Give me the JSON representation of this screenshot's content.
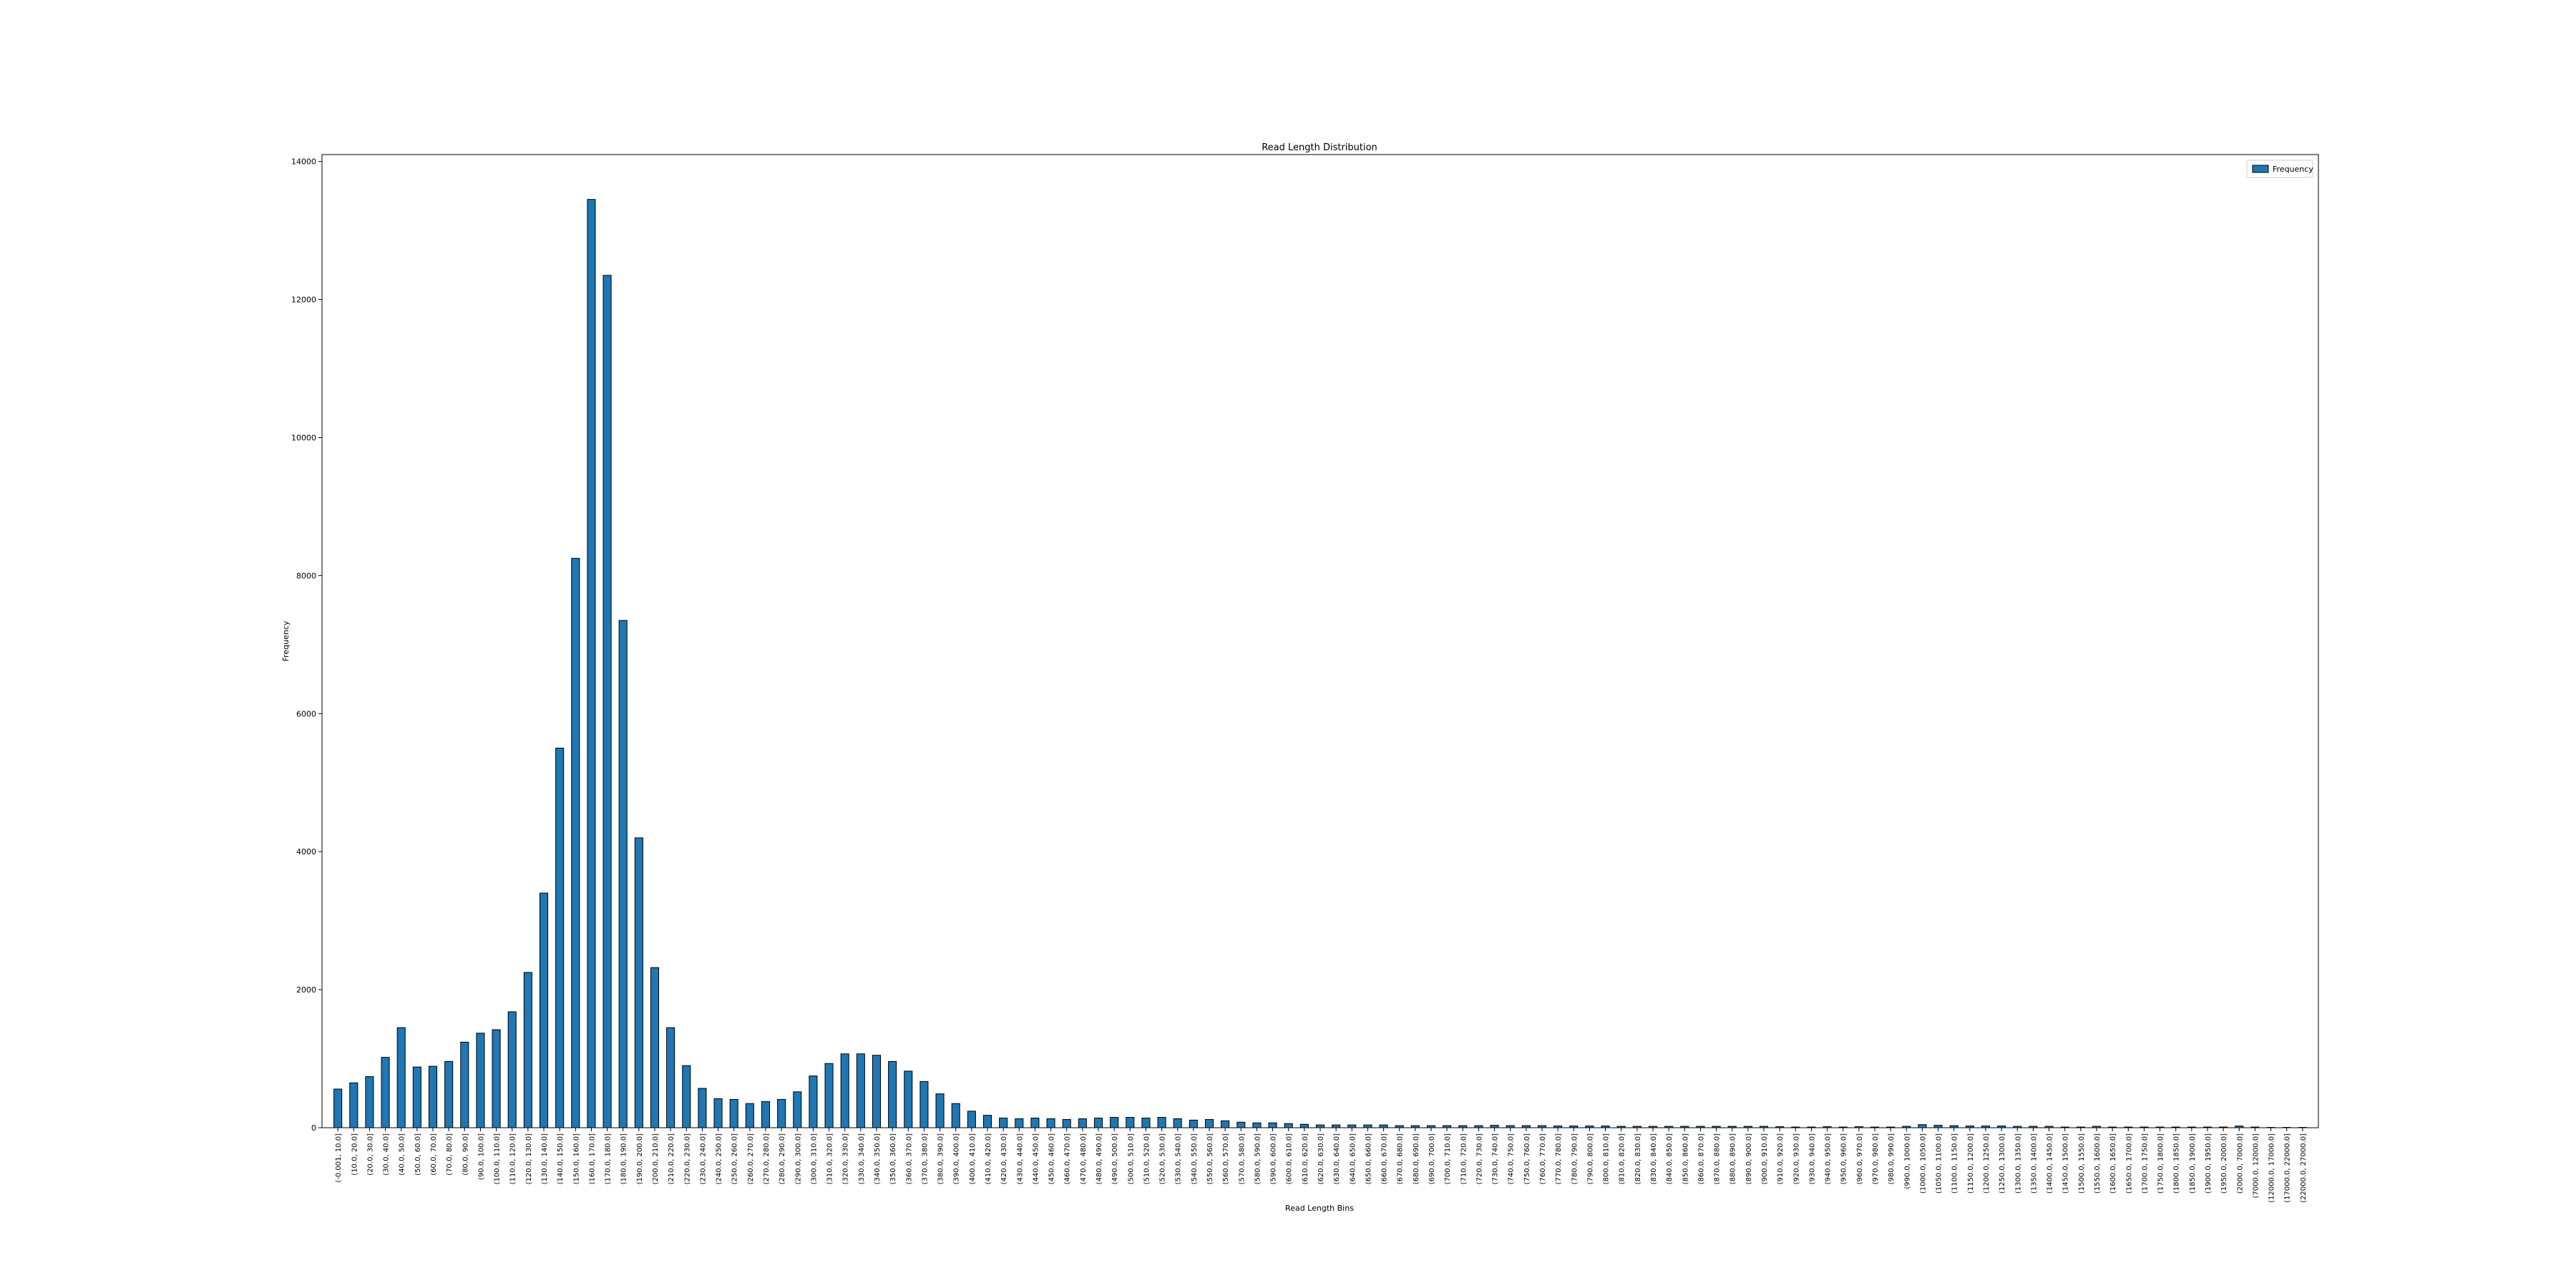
{
  "chart_data": {
    "type": "bar",
    "title": "Read Length Distribution",
    "xlabel": "Read Length Bins",
    "ylabel": "Frequency",
    "ylim": [
      0,
      14100
    ],
    "yticks": [
      0,
      2000,
      4000,
      6000,
      8000,
      10000,
      12000,
      14000
    ],
    "grid": false,
    "legend": {
      "placement": "top-right",
      "entries": [
        "Frequency"
      ]
    },
    "bar_color": "#1f77b4",
    "edge_color": "#000000",
    "categories": [
      "(-0.001, 10.0]",
      "(10.0, 20.0]",
      "(20.0, 30.0]",
      "(30.0, 40.0]",
      "(40.0, 50.0]",
      "(50.0, 60.0]",
      "(60.0, 70.0]",
      "(70.0, 80.0]",
      "(80.0, 90.0]",
      "(90.0, 100.0]",
      "(100.0, 110.0]",
      "(110.0, 120.0]",
      "(120.0, 130.0]",
      "(130.0, 140.0]",
      "(140.0, 150.0]",
      "(150.0, 160.0]",
      "(160.0, 170.0]",
      "(170.0, 180.0]",
      "(180.0, 190.0]",
      "(190.0, 200.0]",
      "(200.0, 210.0]",
      "(210.0, 220.0]",
      "(220.0, 230.0]",
      "(230.0, 240.0]",
      "(240.0, 250.0]",
      "(250.0, 260.0]",
      "(260.0, 270.0]",
      "(270.0, 280.0]",
      "(280.0, 290.0]",
      "(290.0, 300.0]",
      "(300.0, 310.0]",
      "(310.0, 320.0]",
      "(320.0, 330.0]",
      "(330.0, 340.0]",
      "(340.0, 350.0]",
      "(350.0, 360.0]",
      "(360.0, 370.0]",
      "(370.0, 380.0]",
      "(380.0, 390.0]",
      "(390.0, 400.0]",
      "(400.0, 410.0]",
      "(410.0, 420.0]",
      "(420.0, 430.0]",
      "(430.0, 440.0]",
      "(440.0, 450.0]",
      "(450.0, 460.0]",
      "(460.0, 470.0]",
      "(470.0, 480.0]",
      "(480.0, 490.0]",
      "(490.0, 500.0]",
      "(500.0, 510.0]",
      "(510.0, 520.0]",
      "(520.0, 530.0]",
      "(530.0, 540.0]",
      "(540.0, 550.0]",
      "(550.0, 560.0]",
      "(560.0, 570.0]",
      "(570.0, 580.0]",
      "(580.0, 590.0]",
      "(590.0, 600.0]",
      "(600.0, 610.0]",
      "(610.0, 620.0]",
      "(620.0, 630.0]",
      "(630.0, 640.0]",
      "(640.0, 650.0]",
      "(650.0, 660.0]",
      "(660.0, 670.0]",
      "(670.0, 680.0]",
      "(680.0, 690.0]",
      "(690.0, 700.0]",
      "(700.0, 710.0]",
      "(710.0, 720.0]",
      "(720.0, 730.0]",
      "(730.0, 740.0]",
      "(740.0, 750.0]",
      "(750.0, 760.0]",
      "(760.0, 770.0]",
      "(770.0, 780.0]",
      "(780.0, 790.0]",
      "(790.0, 800.0]",
      "(800.0, 810.0]",
      "(810.0, 820.0]",
      "(820.0, 830.0]",
      "(830.0, 840.0]",
      "(840.0, 850.0]",
      "(850.0, 860.0]",
      "(860.0, 870.0]",
      "(870.0, 880.0]",
      "(880.0, 890.0]",
      "(890.0, 900.0]",
      "(900.0, 910.0]",
      "(910.0, 920.0]",
      "(920.0, 930.0]",
      "(930.0, 940.0]",
      "(940.0, 950.0]",
      "(950.0, 960.0]",
      "(960.0, 970.0]",
      "(970.0, 980.0]",
      "(980.0, 990.0]",
      "(990.0, 1000.0]",
      "(1000.0, 1050.0]",
      "(1050.0, 1100.0]",
      "(1100.0, 1150.0]",
      "(1150.0, 1200.0]",
      "(1200.0, 1250.0]",
      "(1250.0, 1300.0]",
      "(1300.0, 1350.0]",
      "(1350.0, 1400.0]",
      "(1400.0, 1450.0]",
      "(1450.0, 1500.0]",
      "(1500.0, 1550.0]",
      "(1550.0, 1600.0]",
      "(1600.0, 1650.0]",
      "(1650.0, 1700.0]",
      "(1700.0, 1750.0]",
      "(1750.0, 1800.0]",
      "(1800.0, 1850.0]",
      "(1850.0, 1900.0]",
      "(1900.0, 1950.0]",
      "(1950.0, 2000.0]",
      "(2000.0, 7000.0]",
      "(7000.0, 12000.0]",
      "(12000.0, 17000.0]",
      "(17000.0, 22000.0]",
      "(22000.0, 27000.0]"
    ],
    "series": [
      {
        "name": "Frequency",
        "values": [
          560,
          650,
          740,
          1020,
          1450,
          880,
          890,
          960,
          1240,
          1370,
          1420,
          1680,
          2250,
          3400,
          5500,
          8250,
          13450,
          12350,
          7350,
          4200,
          2320,
          1450,
          900,
          570,
          420,
          410,
          350,
          380,
          410,
          520,
          750,
          930,
          1070,
          1070,
          1050,
          960,
          820,
          670,
          490,
          350,
          240,
          180,
          140,
          130,
          140,
          130,
          120,
          130,
          140,
          150,
          150,
          140,
          150,
          130,
          110,
          120,
          100,
          80,
          70,
          70,
          60,
          50,
          40,
          40,
          40,
          40,
          40,
          30,
          30,
          30,
          30,
          30,
          30,
          35,
          30,
          30,
          30,
          25,
          25,
          25,
          25,
          20,
          20,
          20,
          20,
          20,
          20,
          20,
          20,
          20,
          20,
          15,
          10,
          10,
          15,
          10,
          15,
          10,
          10,
          20,
          45,
          35,
          30,
          25,
          25,
          25,
          20,
          20,
          20,
          10,
          10,
          20,
          10,
          10,
          10,
          10,
          10,
          10,
          10,
          10,
          25,
          10,
          5,
          5,
          5
        ]
      }
    ]
  }
}
